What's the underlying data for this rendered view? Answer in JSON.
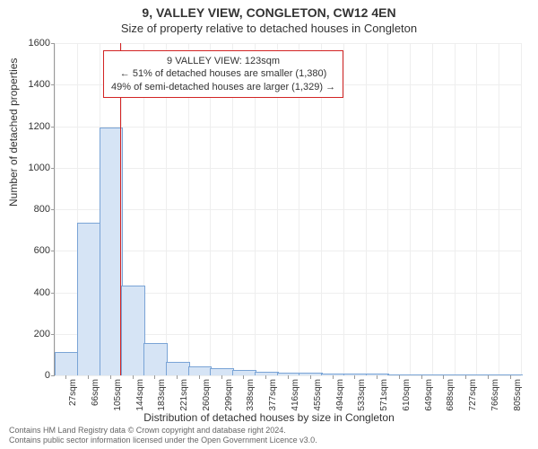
{
  "title": "9, VALLEY VIEW, CONGLETON, CW12 4EN",
  "subtitle": "Size of property relative to detached houses in Congleton",
  "chart": {
    "type": "histogram",
    "xlabel": "Distribution of detached houses by size in Congleton",
    "ylabel": "Number of detached properties",
    "ylim": [
      0,
      1600
    ],
    "ytick_step": 200,
    "xtick_labels": [
      "27sqm",
      "66sqm",
      "105sqm",
      "144sqm",
      "183sqm",
      "221sqm",
      "260sqm",
      "299sqm",
      "338sqm",
      "377sqm",
      "416sqm",
      "455sqm",
      "494sqm",
      "533sqm",
      "571sqm",
      "610sqm",
      "649sqm",
      "688sqm",
      "727sqm",
      "766sqm",
      "805sqm"
    ],
    "values": [
      110,
      730,
      1190,
      430,
      150,
      60,
      40,
      30,
      20,
      15,
      10,
      8,
      5,
      4,
      3,
      2,
      2,
      1,
      1,
      1,
      1
    ],
    "bar_fill": "#d6e4f5",
    "bar_stroke": "#7aa4d6",
    "background_color": "#ffffff",
    "grid_color": "#eeeeee",
    "axis_color": "#999999",
    "tick_fontsize": 11,
    "label_fontsize": 12,
    "reference_line": {
      "x_value": 123,
      "color": "#d22424",
      "width": 1.5
    }
  },
  "annotation": {
    "lines": [
      "9 VALLEY VIEW: 123sqm",
      "← 51% of detached houses are smaller (1,380)",
      "49% of semi-detached houses are larger (1,329) →"
    ],
    "border_color": "#d22424",
    "background": "#ffffff",
    "fontsize": 11
  },
  "footer": {
    "line1": "Contains HM Land Registry data © Crown copyright and database right 2024.",
    "line2": "Contains public sector information licensed under the Open Government Licence v3.0."
  }
}
